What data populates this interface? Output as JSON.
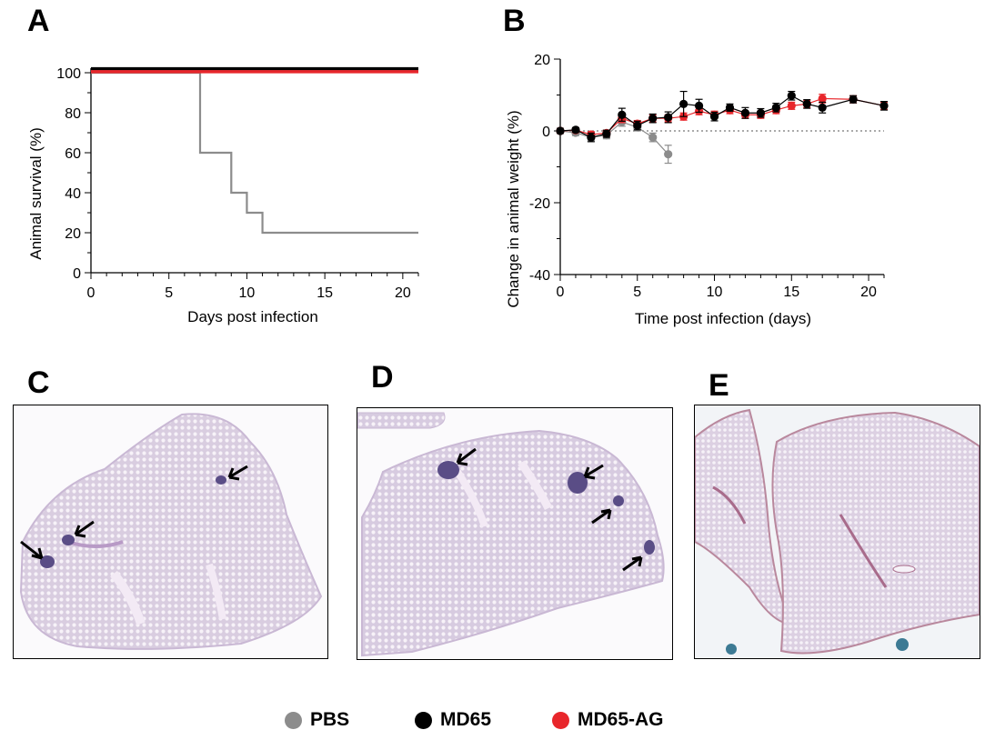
{
  "panels": {
    "A": "A",
    "B": "B",
    "C": "C",
    "D": "D",
    "E": "E"
  },
  "colors": {
    "PBS": "#8c8c8c",
    "MD65": "#000000",
    "MD65-AG": "#e8262b"
  },
  "legend": [
    {
      "label": "PBS",
      "color": "#8c8c8c"
    },
    {
      "label": "MD65",
      "color": "#000000"
    },
    {
      "label": "MD65-AG",
      "color": "#e8262b"
    }
  ],
  "chart_data": [
    {
      "id": "A",
      "type": "line",
      "step": true,
      "title": "",
      "xlabel": "Days post infection",
      "ylabel": "Animal survival (%)",
      "xlim": [
        0,
        21
      ],
      "ylim": [
        0,
        100
      ],
      "xticks": [
        0,
        5,
        10,
        15,
        20
      ],
      "yticks": [
        0,
        20,
        40,
        60,
        80,
        100
      ],
      "series": [
        {
          "name": "PBS",
          "x": [
            0,
            7,
            9,
            10,
            11,
            21
          ],
          "y": [
            100,
            60,
            40,
            30,
            20,
            20
          ]
        },
        {
          "name": "MD65",
          "x": [
            0,
            21
          ],
          "y": [
            102,
            102
          ]
        },
        {
          "name": "MD65-AG",
          "x": [
            0,
            21
          ],
          "y": [
            100.5,
            100.5
          ]
        }
      ]
    },
    {
      "id": "B",
      "type": "line",
      "title": "",
      "xlabel": "Time post infection (days)",
      "ylabel": "Change in animal weight (%)",
      "xlim": [
        0,
        21
      ],
      "ylim": [
        -40,
        20
      ],
      "xticks": [
        0,
        5,
        10,
        15,
        20
      ],
      "yticks": [
        -40,
        -20,
        0,
        20
      ],
      "reference_line": 0,
      "series": [
        {
          "name": "PBS",
          "x": [
            0,
            1,
            2,
            3,
            4,
            5,
            6,
            7
          ],
          "y": [
            0,
            -0.5,
            -1.8,
            -1.2,
            2.5,
            1.0,
            -1.8,
            -6.5
          ],
          "err": [
            0.8,
            0.8,
            0.9,
            1.0,
            1.2,
            1.0,
            1.2,
            2.5
          ]
        },
        {
          "name": "MD65-AG",
          "x": [
            0,
            1,
            2,
            3,
            4,
            5,
            6,
            7,
            8,
            9,
            10,
            11,
            12,
            13,
            14,
            15,
            16,
            17,
            19,
            21
          ],
          "y": [
            0,
            0.2,
            -1.0,
            -0.6,
            3.5,
            2.0,
            3.5,
            3.5,
            4.0,
            5.5,
            4.5,
            5.8,
            4.5,
            4.5,
            5.8,
            7.0,
            7.5,
            9.0,
            8.8,
            7.0
          ],
          "err": [
            0.5,
            0.6,
            0.8,
            0.8,
            1.2,
            0.9,
            1.0,
            1.0,
            1.0,
            1.0,
            1.0,
            1.0,
            1.0,
            1.0,
            1.0,
            1.0,
            1.0,
            1.2,
            1.0,
            1.0
          ]
        },
        {
          "name": "MD65",
          "x": [
            0,
            1,
            2,
            3,
            4,
            5,
            6,
            7,
            8,
            9,
            10,
            11,
            12,
            13,
            14,
            15,
            16,
            17,
            19,
            21
          ],
          "y": [
            0,
            0.3,
            -1.8,
            -0.8,
            4.5,
            1.5,
            3.5,
            3.8,
            7.5,
            7.0,
            4.0,
            6.5,
            5.0,
            5.0,
            6.5,
            9.8,
            7.5,
            6.5,
            8.8,
            7.0
          ],
          "err": [
            0.5,
            0.6,
            1.2,
            1.0,
            1.8,
            1.2,
            1.2,
            1.5,
            3.5,
            1.8,
            1.2,
            1.0,
            1.5,
            1.2,
            1.2,
            1.2,
            1.2,
            1.5,
            1.0,
            1.2
          ]
        }
      ]
    }
  ]
}
